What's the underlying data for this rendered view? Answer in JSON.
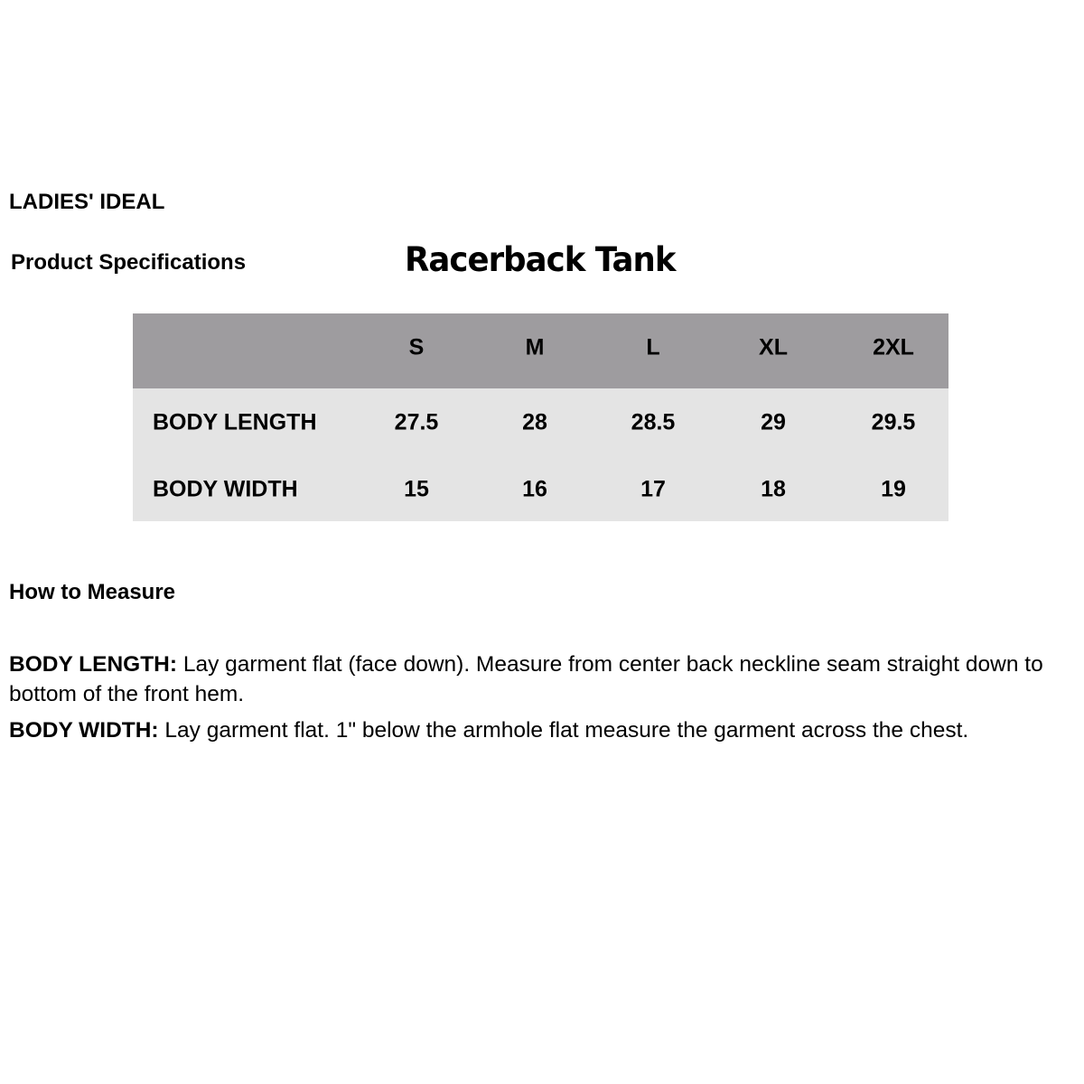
{
  "brand": "LADIES' IDEAL",
  "subtitle": "Product Specifications",
  "title": "Racerback Tank",
  "colors": {
    "header_bg": "#9e9c9f",
    "body_bg": "#e4e4e4"
  },
  "table": {
    "sizes": [
      "S",
      "M",
      "L",
      "XL",
      "2XL"
    ],
    "rows": [
      {
        "label": "BODY LENGTH",
        "values": [
          "27.5",
          "28",
          "28.5",
          "29",
          "29.5"
        ]
      },
      {
        "label": "BODY WIDTH",
        "values": [
          "15",
          "16",
          "17",
          "18",
          "19"
        ]
      }
    ]
  },
  "how_to": {
    "heading": "How to Measure",
    "items": [
      {
        "term": "BODY LENGTH:",
        "text": " Lay garment flat (face down). Measure from center back neckline seam straight down to bottom of the front hem."
      },
      {
        "term": "BODY WIDTH:",
        "text": " Lay garment flat. 1\" below the armhole flat measure the garment across the chest."
      }
    ]
  }
}
